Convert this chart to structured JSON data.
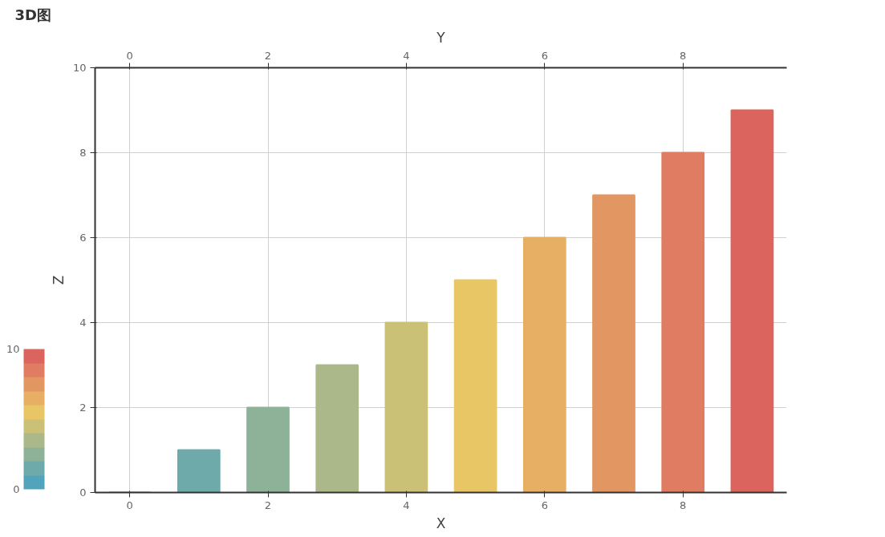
{
  "chart_data": {
    "type": "bar",
    "title": "3D图",
    "xlabel": "X",
    "ylabel": "Z",
    "x2label": "Y",
    "x": [
      0,
      1,
      2,
      3,
      4,
      5,
      6,
      7,
      8,
      9
    ],
    "values": [
      0,
      1,
      2,
      3,
      4,
      5,
      6,
      7,
      8,
      9
    ],
    "colors": [
      "#51a4bb",
      "#6eaaaa",
      "#8db297",
      "#abb98a",
      "#cbc176",
      "#e9c665",
      "#e6af64",
      "#e29762",
      "#e07c62",
      "#dc645e"
    ],
    "xlim": [
      -0.5,
      9.5
    ],
    "xticks": [
      0,
      2,
      4,
      6,
      8
    ],
    "x2lim": [
      -0.5,
      9.5
    ],
    "x2ticks": [
      0,
      2,
      4,
      6,
      8
    ],
    "ylim": [
      0,
      10
    ],
    "yticks": [
      0,
      2,
      4,
      6,
      8,
      10
    ],
    "clim": [
      0,
      10
    ],
    "cticks": [
      0,
      10
    ],
    "grid": true
  }
}
